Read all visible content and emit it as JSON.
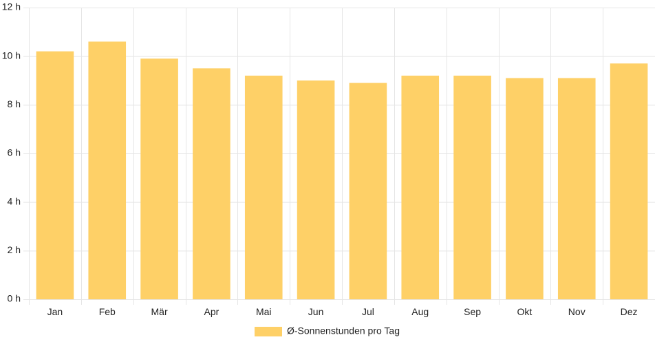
{
  "chart_data": {
    "type": "bar",
    "categories": [
      "Jan",
      "Feb",
      "Mär",
      "Apr",
      "Mai",
      "Jun",
      "Jul",
      "Aug",
      "Sep",
      "Okt",
      "Nov",
      "Dez"
    ],
    "series": [
      {
        "name": "Ø-Sonnenstunden pro Tag",
        "values": [
          10.2,
          10.6,
          9.9,
          9.5,
          9.2,
          9.0,
          8.9,
          9.2,
          9.2,
          9.1,
          9.1,
          9.7
        ]
      }
    ],
    "ylim": [
      0,
      12
    ],
    "yticks": [
      "0 h",
      "2 h",
      "4 h",
      "6 h",
      "8 h",
      "10 h",
      "12 h"
    ],
    "ytick_values": [
      0,
      2,
      4,
      6,
      8,
      10,
      12
    ],
    "grid": true,
    "legend_position": "bottom",
    "colors": {
      "bar": "#fed067",
      "grid": "#e5e5e5",
      "text": "#222222"
    }
  }
}
